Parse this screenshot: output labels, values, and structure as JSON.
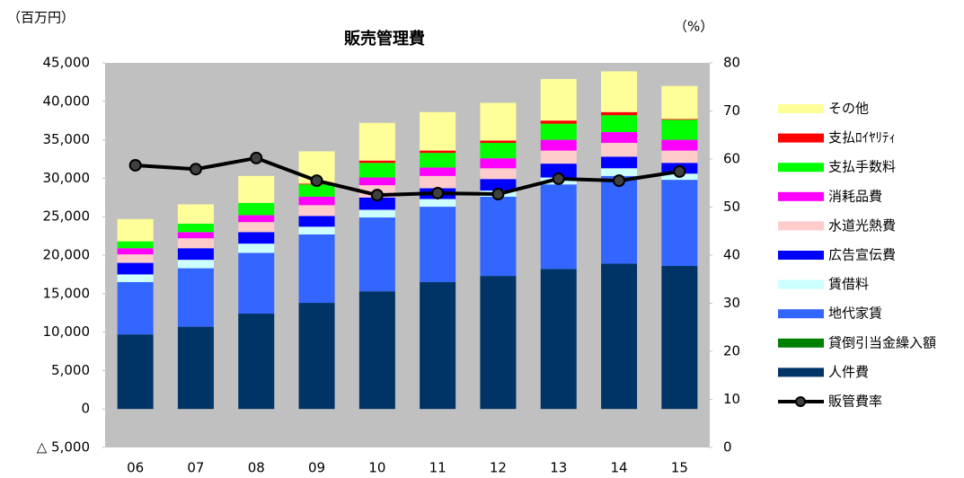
{
  "chart_data": {
    "type": "bar",
    "title": "販売管理費",
    "y_label": "（百万円）",
    "y2_label": "（%）",
    "categories": [
      "06",
      "07",
      "08",
      "09",
      "10",
      "11",
      "12",
      "13",
      "14",
      "15"
    ],
    "stacked": true,
    "background": "#c0c0c0",
    "ylim": [
      -5000,
      45000
    ],
    "yticks": [
      {
        "value": -5000,
        "label": "△ 5,000"
      },
      0,
      {
        "value": 5000,
        "label": "5,000"
      },
      {
        "value": 10000,
        "label": "10,000"
      },
      {
        "value": 15000,
        "label": "15,000"
      },
      {
        "value": 20000,
        "label": "20,000"
      },
      {
        "value": 25000,
        "label": "25,000"
      },
      {
        "value": 30000,
        "label": "30,000"
      },
      {
        "value": 35000,
        "label": "35,000"
      },
      {
        "value": 40000,
        "label": "40,000"
      },
      {
        "value": 45000,
        "label": "45,000"
      }
    ],
    "y2lim": [
      0,
      80
    ],
    "y2ticks": [
      0,
      10,
      20,
      30,
      40,
      50,
      60,
      70,
      80
    ],
    "series": [
      {
        "name": "人件費",
        "color": "#003366",
        "values": [
          9700,
          10700,
          12400,
          13800,
          15300,
          16500,
          17300,
          18200,
          18900,
          18600
        ]
      },
      {
        "name": "貸倒引当金繰入額",
        "color": "#008000",
        "values": [
          0,
          0,
          0,
          0,
          0,
          0,
          0,
          0,
          0,
          0
        ]
      },
      {
        "name": "地代家賃",
        "color": "#3366ff",
        "values": [
          6800,
          7600,
          7900,
          8900,
          9600,
          9800,
          10300,
          11000,
          11400,
          11200
        ]
      },
      {
        "name": "賃借料",
        "color": "#ccffff",
        "values": [
          1000,
          1100,
          1200,
          1000,
          1000,
          1000,
          800,
          900,
          1000,
          800
        ]
      },
      {
        "name": "広告宣伝費",
        "color": "#0000ff",
        "values": [
          1500,
          1500,
          1500,
          1400,
          1600,
          1400,
          1500,
          1800,
          1500,
          1400
        ]
      },
      {
        "name": "水道光熱費",
        "color": "#ffcccc",
        "values": [
          1100,
          1300,
          1300,
          1400,
          1600,
          1600,
          1400,
          1700,
          1800,
          1600
        ]
      },
      {
        "name": "消耗品費",
        "color": "#ff00ff",
        "values": [
          800,
          800,
          900,
          1100,
          1000,
          1100,
          1300,
          1400,
          1400,
          1400
        ]
      },
      {
        "name": "支払手数料",
        "color": "#00ff00",
        "values": [
          900,
          1100,
          1600,
          1600,
          1900,
          1900,
          2000,
          2100,
          2200,
          2600
        ]
      },
      {
        "name": "支払ﾛｲﾔﾘﾃｨ",
        "color": "#ff0000",
        "values": [
          0,
          0,
          0,
          100,
          300,
          300,
          300,
          400,
          400,
          100
        ]
      },
      {
        "name": "その他",
        "color": "#ffff99",
        "values": [
          2900,
          2500,
          3500,
          4200,
          4900,
          5000,
          4900,
          5400,
          5300,
          4300
        ]
      },
      {
        "name": "販管費率",
        "color": "#000000",
        "type": "line",
        "axis": "y2",
        "values": [
          58.7,
          57.9,
          60.2,
          55.5,
          52.5,
          52.9,
          52.7,
          55.9,
          55.5,
          57.4
        ]
      }
    ]
  }
}
